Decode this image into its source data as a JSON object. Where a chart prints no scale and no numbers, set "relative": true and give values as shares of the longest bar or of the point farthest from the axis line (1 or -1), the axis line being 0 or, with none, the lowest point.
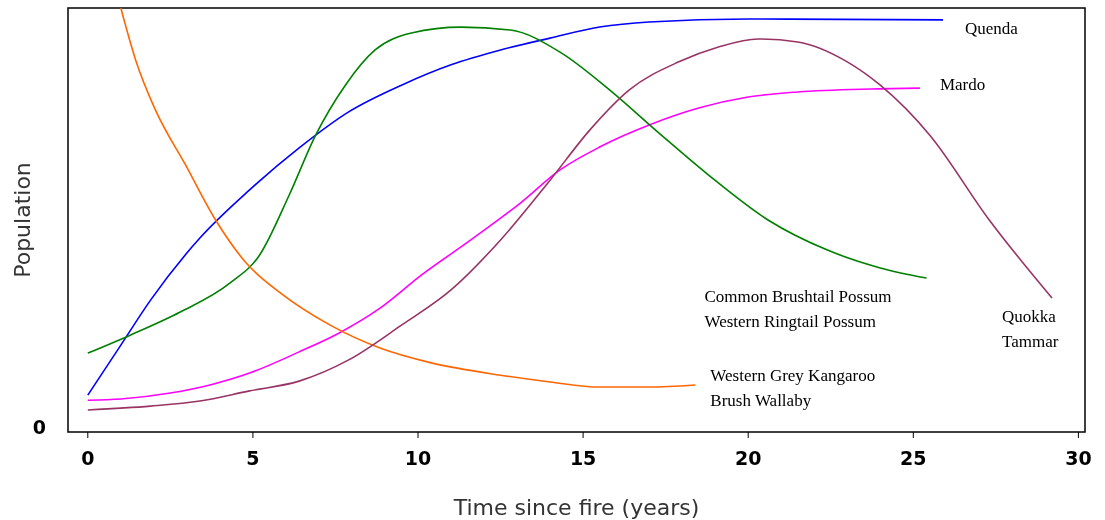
{
  "chart_data": {
    "type": "line",
    "relative": true,
    "xlabel": "Time since fire (years)",
    "ylabel": "Population",
    "xlim": [
      -0.6,
      30.2
    ],
    "xticks": [
      0,
      5,
      10,
      15,
      20,
      25,
      30
    ],
    "annotations": [
      "0"
    ],
    "series": [
      {
        "name": "Quenda",
        "color": "#0000ff",
        "x": [
          0,
          1,
          1.9,
          3.4,
          4.9,
          6.4,
          7.9,
          9.5,
          11,
          12.5,
          14,
          15.5,
          17,
          20,
          25.9
        ],
        "values": [
          0.087,
          0.205,
          0.311,
          0.458,
          0.571,
          0.67,
          0.755,
          0.818,
          0.866,
          0.901,
          0.929,
          0.955,
          0.967,
          0.974,
          0.972
        ]
      },
      {
        "name": "Mardo",
        "color": "#ff00ff",
        "x": [
          0,
          1,
          2.5,
          3.7,
          4.9,
          6.4,
          7.6,
          8.85,
          10.1,
          11.6,
          13.1,
          14.3,
          15.5,
          17,
          18.5,
          20,
          21.5,
          23.7,
          25.2
        ],
        "values": [
          0.075,
          0.078,
          0.092,
          0.111,
          0.139,
          0.189,
          0.233,
          0.292,
          0.37,
          0.453,
          0.54,
          0.618,
          0.672,
          0.724,
          0.764,
          0.79,
          0.802,
          0.809,
          0.811
        ]
      },
      {
        "name": "Common Brushtail Possum\nWestern Ringtail Possum",
        "color": "#008000",
        "x": [
          0,
          1.3,
          2.8,
          4.3,
          5.2,
          6.1,
          6.9,
          7.8,
          8.7,
          9.8,
          11.3,
          12.8,
          14.3,
          15.8,
          17.3,
          18.8,
          20.6,
          22.4,
          24,
          25.4
        ],
        "values": [
          0.186,
          0.229,
          0.283,
          0.351,
          0.417,
          0.559,
          0.7,
          0.818,
          0.901,
          0.941,
          0.955,
          0.948,
          0.896,
          0.807,
          0.705,
          0.606,
          0.5,
          0.429,
          0.387,
          0.363
        ]
      },
      {
        "name": "Western Grey Kangaroo\nBrush Wallaby",
        "color": "#ff6600",
        "x": [
          1,
          1.45,
          2.05,
          2.96,
          3.87,
          4.77,
          5.83,
          7.34,
          8.85,
          10.4,
          12.5,
          14,
          15.5,
          17,
          18.4
        ],
        "values": [
          1,
          0.877,
          0.759,
          0.63,
          0.5,
          0.401,
          0.328,
          0.252,
          0.198,
          0.163,
          0.134,
          0.118,
          0.106,
          0.106,
          0.111
        ]
      },
      {
        "name": "Quokka\nTammar",
        "color": "#993366",
        "x": [
          0,
          1.9,
          3.4,
          4.9,
          6.4,
          7.9,
          9.5,
          11,
          12.5,
          14,
          15.2,
          16.4,
          17.9,
          19.1,
          20.3,
          21.5,
          23,
          24,
          25.5,
          27.3,
          29.2
        ],
        "values": [
          0.052,
          0.061,
          0.073,
          0.097,
          0.12,
          0.17,
          0.252,
          0.335,
          0.453,
          0.594,
          0.712,
          0.807,
          0.873,
          0.908,
          0.927,
          0.92,
          0.873,
          0.818,
          0.7,
          0.5,
          0.316
        ]
      }
    ]
  }
}
